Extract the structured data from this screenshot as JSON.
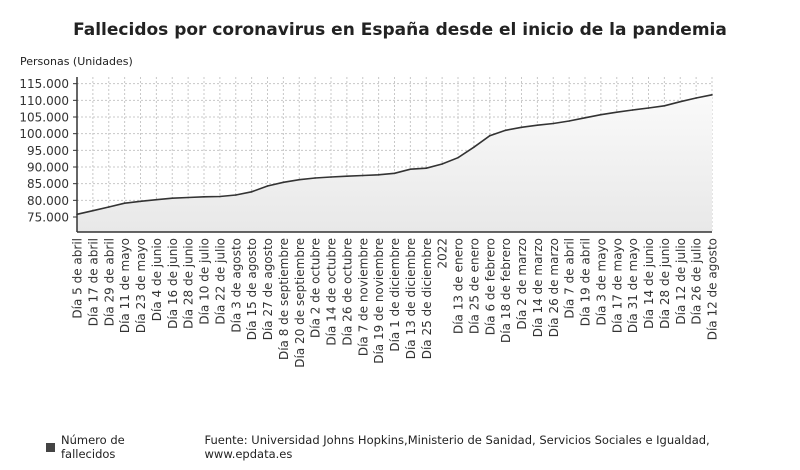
{
  "chart_data": {
    "type": "area",
    "title": "Fallecidos por coronavirus en España desde el inicio de la pandemia",
    "ylabel": "Personas (Unidades)",
    "xlabel": "",
    "ylim": [
      70500,
      117000
    ],
    "yticks": [
      75000,
      80000,
      85000,
      90000,
      95000,
      100000,
      105000,
      110000,
      115000
    ],
    "ytick_labels": [
      "75.000",
      "80.000",
      "85.000",
      "90.000",
      "95.000",
      "100.000",
      "105.000",
      "110.000",
      "115.000"
    ],
    "grid": true,
    "legend_position": "bottom-left",
    "categories": [
      "Día 5 de abril",
      "Día 17 de abril",
      "Día 29 de abril",
      "Día 11 de mayo",
      "Día 23 de mayo",
      "Día 4 de junio",
      "Día 16 de junio",
      "Día 28 de junio",
      "Día 10 de julio",
      "Día 22 de julio",
      "Día 3 de agosto",
      "Día 15 de agosto",
      "Día 27 de agosto",
      "Día 8 de septiembre",
      "Día 20 de septiembre",
      "Día 2 de octubre",
      "Día 14 de octubre",
      "Día 26 de octubre",
      "Día 7 de noviembre",
      "Día 19 de noviembre",
      "Día 1 de diciembre",
      "Día 13 de diciembre",
      "Día 25 de diciembre",
      "2022",
      "Día 13 de enero",
      "Día 25 de enero",
      "Día 6 de febrero",
      "Día 18 de febrero",
      "Día 2 de marzo",
      "Día 14 de marzo",
      "Día 26 de marzo",
      "Día 7 de abril",
      "Día 19 de abril",
      "Día 3 de mayo",
      "Día 17 de mayo",
      "Día 31 de mayo",
      "Día 14 de junio",
      "Día 28 de junio",
      "Día 12 de julio",
      "Día 26 de julio",
      "Día 12 de agosto"
    ],
    "series": [
      {
        "name": "Número de fallecidos",
        "color": "#333333",
        "fill": "#eeeeee",
        "values": [
          75800,
          76900,
          78000,
          79150,
          79700,
          80200,
          80650,
          80850,
          81050,
          81150,
          81600,
          82550,
          84300,
          85400,
          86200,
          86700,
          87000,
          87250,
          87450,
          87650,
          88100,
          89350,
          89650,
          90900,
          92800,
          95950,
          99400,
          101000,
          101900,
          102550,
          103050,
          103800,
          104750,
          105700,
          106450,
          107100,
          107700,
          108350,
          109600,
          110700,
          111650
        ]
      }
    ]
  },
  "footer": {
    "legend_label": "Número de fallecidos",
    "source": "Fuente: Universidad Johns Hopkins,Ministerio de Sanidad, Servicios Sociales e Igualdad, www.epdata.es"
  }
}
